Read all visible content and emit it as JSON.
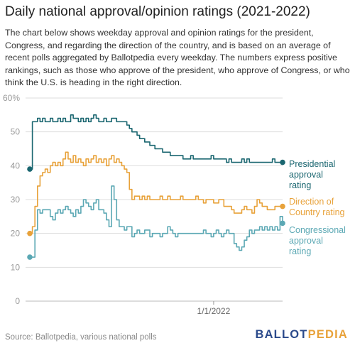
{
  "title": "Daily national approval/opinion ratings (2021-2022)",
  "description": "The chart below shows weekday approval and opinion ratings for the president, Congress, and regarding the direction of the country, and is based on an average of recent polls aggregated by Ballotpedia every weekday. The numbers express positive rankings, such as those who approve of the president, who approve of Congress, or who think the U.S. is heading in the right direction.",
  "source": "Source: Ballotpedia, various national polls",
  "logo": {
    "part1": "BALLOT",
    "part2": "PEDIA"
  },
  "colors": {
    "presidential": "#1a6670",
    "direction": "#e8a23a",
    "congressional": "#5ba8b4",
    "grid": "#dddddd",
    "axis_text": "#999999"
  },
  "chart_data": {
    "type": "line",
    "y_ticks": [
      "0",
      "10",
      "20",
      "30",
      "40",
      "50",
      "60%"
    ],
    "x_tick": {
      "label": "1/1/2022",
      "index": 72
    },
    "ylim": [
      0,
      60
    ],
    "x_count": 100,
    "series": [
      {
        "key": "presidential",
        "label_lines": [
          "Presidential",
          "approval",
          "rating"
        ],
        "values": [
          39,
          53,
          53,
          54,
          53,
          54,
          53,
          53,
          54,
          53,
          53,
          54,
          53,
          54,
          53,
          53,
          55,
          54,
          54,
          53,
          54,
          53,
          54,
          53,
          54,
          55,
          54,
          53,
          53,
          54,
          53,
          53,
          54,
          54,
          53,
          53,
          53,
          53,
          52,
          51,
          50,
          50,
          49,
          48,
          48,
          47,
          47,
          46,
          46,
          45,
          45,
          45,
          44,
          44,
          44,
          43,
          43,
          43,
          43,
          43,
          42,
          42,
          42,
          43,
          42,
          42,
          42,
          42,
          42,
          42,
          42,
          43,
          42,
          42,
          42,
          42,
          42,
          41,
          42,
          41,
          41,
          41,
          41,
          42,
          41,
          42,
          41,
          41,
          41,
          41,
          41,
          41,
          41,
          41,
          41,
          42,
          41,
          41,
          41,
          41
        ]
      },
      {
        "key": "direction",
        "label_lines": [
          "Direction of",
          "Country rating"
        ],
        "values": [
          20,
          22,
          28,
          34,
          37,
          38,
          39,
          38,
          40,
          41,
          40,
          41,
          40,
          42,
          44,
          42,
          41,
          43,
          41,
          42,
          41,
          40,
          42,
          41,
          42,
          43,
          41,
          42,
          41,
          42,
          40,
          42,
          43,
          41,
          42,
          41,
          40,
          39,
          38,
          33,
          30,
          31,
          31,
          30,
          31,
          30,
          31,
          30,
          30,
          30,
          30,
          31,
          30,
          30,
          31,
          30,
          30,
          30,
          30,
          31,
          30,
          30,
          30,
          30,
          30,
          31,
          30,
          30,
          29,
          30,
          30,
          30,
          29,
          29,
          30,
          30,
          28,
          28,
          28,
          27,
          26,
          26,
          26,
          27,
          28,
          27,
          27,
          26,
          28,
          30,
          29,
          28,
          28,
          27,
          27,
          27,
          28,
          28,
          28,
          28
        ]
      },
      {
        "key": "congressional",
        "label_lines": [
          "Congressional",
          "approval",
          "rating"
        ],
        "values": [
          13,
          13,
          21,
          27,
          26,
          27,
          27,
          27,
          25,
          24,
          26,
          27,
          26,
          27,
          28,
          27,
          26,
          25,
          27,
          26,
          28,
          30,
          29,
          28,
          27,
          29,
          30,
          27,
          27,
          26,
          24,
          22,
          34,
          30,
          24,
          22,
          22,
          21,
          22,
          22,
          19,
          20,
          21,
          20,
          20,
          21,
          21,
          19,
          20,
          20,
          20,
          19,
          20,
          20,
          22,
          21,
          20,
          19,
          20,
          20,
          20,
          20,
          20,
          20,
          20,
          20,
          20,
          20,
          21,
          20,
          20,
          19,
          20,
          21,
          20,
          19,
          20,
          21,
          20,
          20,
          17,
          16,
          15,
          16,
          18,
          19,
          21,
          20,
          21,
          21,
          22,
          21,
          22,
          21,
          22,
          21,
          22,
          21,
          25,
          23
        ]
      }
    ]
  }
}
